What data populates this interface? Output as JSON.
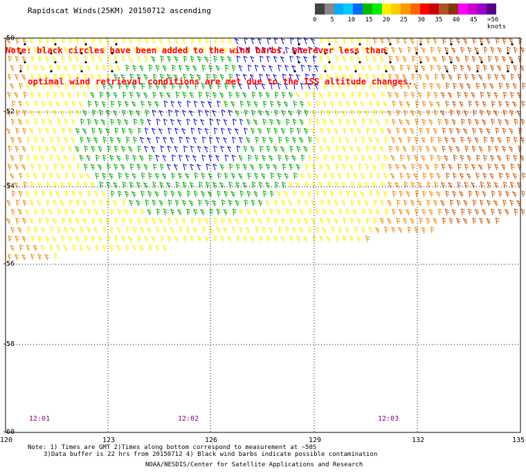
{
  "header": {
    "title": "Rapidscat Winds(25KM) 20150712 ascending"
  },
  "note": {
    "line1": "Note: black circles have been added to the wind barbs, wherever less than",
    "line2": "optimal wind retrieval conditions are met due to the ISS altitude changes."
  },
  "legend": {
    "labels": [
      "0",
      "5",
      "10",
      "15",
      "20",
      "25",
      "30",
      "35",
      "40",
      "45",
      ">50 knots"
    ],
    "colors": [
      "#444444",
      "#888888",
      "#00aaff",
      "#00ccff",
      "#0066ff",
      "#00bb00",
      "#00ee00",
      "#ffee00",
      "#ffcc00",
      "#ff9900",
      "#ff6600",
      "#ff0000",
      "#cc0000",
      "#aa5522",
      "#883311",
      "#ff00ff",
      "#cc00cc",
      "#9900cc",
      "#550088"
    ]
  },
  "axes": {
    "lat_labels": [
      "-50",
      "-52",
      "-54",
      "-56",
      "-58",
      "-60"
    ],
    "lon_labels": [
      "120",
      "123",
      "126",
      "129",
      "132",
      "135"
    ]
  },
  "times": [
    "12:01",
    "12:02",
    "12:03"
  ],
  "footer": {
    "note1": "Note: 1) Times are GMT 2)Times along bottom correspond to measurement at ~50S",
    "note2": "3)Data buffer is 22 hrs from 20150712 4) Black wind barbs indicate possible contamination",
    "credit": "NOAA/NESDIS/Center for Satellite Applications and Research"
  },
  "colors": {
    "blue_barb": "#0000cc",
    "green_barb": "#00aa00",
    "yellow_barb": "#ffee00",
    "orange_barb": "#ee8800",
    "brown_barb": "#cc5500",
    "grid": "#000000"
  }
}
